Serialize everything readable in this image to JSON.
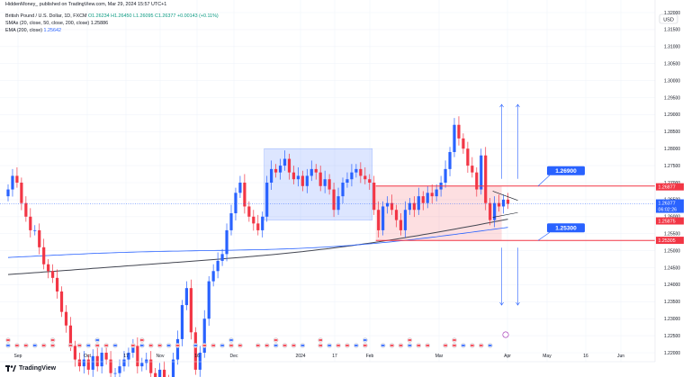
{
  "header": {
    "published_line": "HiddenMoney_ published on TradingView.com, Mar 29, 2024 15:57 UTC+1",
    "symbol_line": "British Pound / U.S. Dollar, 1D, FXCM",
    "ohlc": {
      "o": "O1.26234",
      "h": "H1.26450",
      "l": "L1.26095",
      "c": "C1.26377",
      "chg": "+0.00143 (+0.11%)"
    },
    "sma_label": "SMAs (20, close, 50, close, 200, close)",
    "sma_value": "1.25886",
    "ema_label": "EMA (200, close)",
    "ema_value": "1.25642"
  },
  "footer": {
    "brand": "TradingView"
  },
  "chart_data": {
    "type": "candlestick",
    "currency": "USD",
    "ylim": [
      1.22,
      1.32
    ],
    "y_ticks": [
      1.32,
      1.315,
      1.31,
      1.305,
      1.3,
      1.295,
      1.29,
      1.285,
      1.28,
      1.275,
      1.27,
      1.265,
      1.26,
      1.255,
      1.25,
      1.245,
      1.24,
      1.235,
      1.23,
      1.225,
      1.22
    ],
    "x_labels": [
      "Sep",
      "Oct",
      "17",
      "Nov",
      "16",
      "Dec",
      "2024",
      "17",
      "Feb",
      "Mar",
      "Apr",
      "May",
      "16",
      "Jun"
    ],
    "price_labels": [
      {
        "value": "1.26877",
        "style": "red"
      },
      {
        "value": "1.26377",
        "style": "blue"
      },
      {
        "value": "06:02:26",
        "style": "blue-sub"
      },
      {
        "value": "1.25875",
        "style": "red"
      },
      {
        "value": "1.25305",
        "style": "red"
      }
    ],
    "levels": [
      {
        "label": "1.26900",
        "price": 1.269
      },
      {
        "label": "1.25300",
        "price": 1.253
      }
    ],
    "ma200_start": 1.243,
    "ma200_end": 1.259,
    "ema200_start": 1.248,
    "ema200_end": 1.2564,
    "last_close": 1.26377,
    "range_box": {
      "from_index": 58,
      "to_index": 81,
      "top": 1.28,
      "bottom": 1.259
    },
    "pink_box": {
      "from_index": 83,
      "to_index": 110,
      "top": 1.269,
      "bottom": 1.253
    },
    "target_up": 1.293,
    "target_down": 1.234,
    "close": [
      1.268,
      1.272,
      1.27,
      1.264,
      1.26,
      1.256,
      1.256,
      1.251,
      1.246,
      1.244,
      1.242,
      1.238,
      1.232,
      1.228,
      1.222,
      1.218,
      1.216,
      1.218,
      1.215,
      1.219,
      1.216,
      1.22,
      1.218,
      1.214,
      1.214,
      1.216,
      1.218,
      1.22,
      1.222,
      1.216,
      1.217,
      1.218,
      1.214,
      1.212,
      1.215,
      1.212,
      1.21,
      1.218,
      1.224,
      1.234,
      1.239,
      1.226,
      1.215,
      1.22,
      1.23,
      1.241,
      1.244,
      1.247,
      1.249,
      1.256,
      1.261,
      1.267,
      1.27,
      1.263,
      1.26,
      1.258,
      1.256,
      1.26,
      1.27,
      1.274,
      1.273,
      1.275,
      1.277,
      1.273,
      1.271,
      1.272,
      1.269,
      1.272,
      1.274,
      1.273,
      1.269,
      1.271,
      1.268,
      1.262,
      1.266,
      1.27,
      1.271,
      1.273,
      1.274,
      1.272,
      1.271,
      1.27,
      1.262,
      1.256,
      1.263,
      1.264,
      1.262,
      1.259,
      1.256,
      1.262,
      1.264,
      1.262,
      1.266,
      1.264,
      1.267,
      1.266,
      1.268,
      1.27,
      1.274,
      1.279,
      1.287,
      1.283,
      1.28,
      1.275,
      1.273,
      1.268,
      1.278,
      1.264,
      1.259,
      1.264,
      1.263,
      1.265,
      1.2638
    ]
  }
}
